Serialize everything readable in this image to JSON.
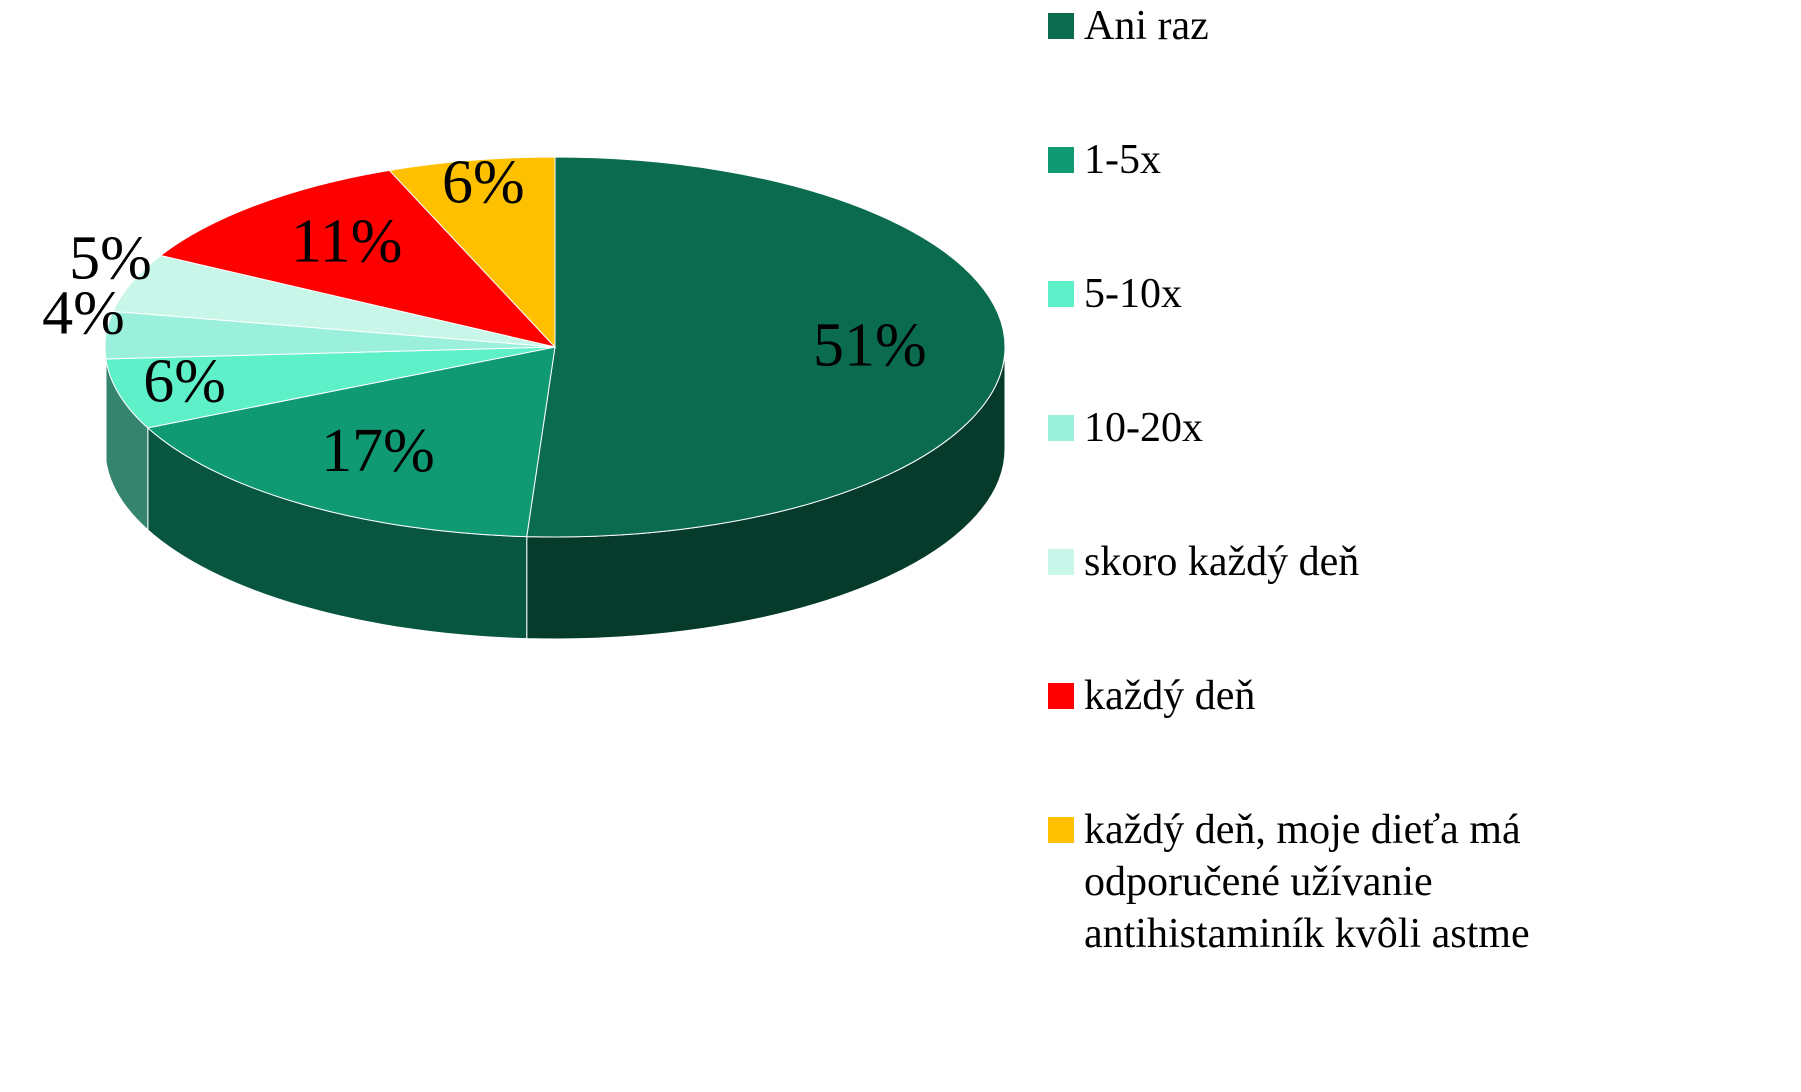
{
  "chart_data": {
    "type": "pie",
    "categories": [
      "Ani raz",
      "1-5x",
      "5-10x",
      "10-20x",
      "skoro každý deň",
      "každý deň",
      "každý deň, moje dieťa má odporučené užívanie antihistaminík kvôli astme"
    ],
    "values": [
      51,
      17,
      6,
      4,
      5,
      11,
      6
    ],
    "value_labels": [
      "51%",
      "17%",
      "6%",
      "4%",
      "5%",
      "11%",
      "6%"
    ],
    "colors": [
      "#0a6b4f",
      "#0f9a74",
      "#5ef0c8",
      "#9af0da",
      "#c8f7ea",
      "#ff0000",
      "#ffc000"
    ],
    "legend": "right"
  }
}
